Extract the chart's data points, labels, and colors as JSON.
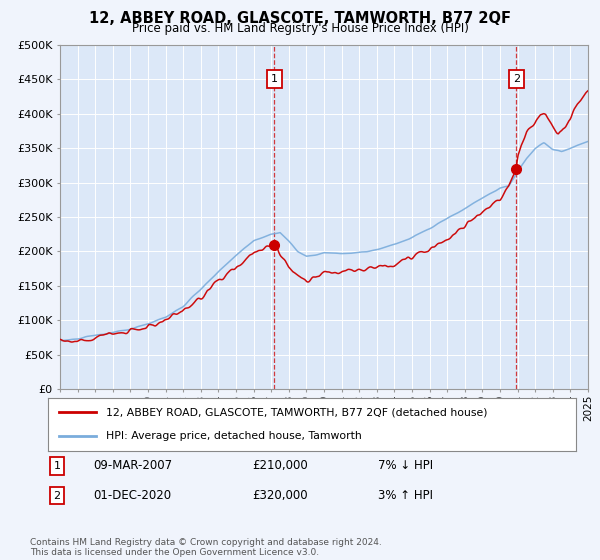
{
  "title": "12, ABBEY ROAD, GLASCOTE, TAMWORTH, B77 2QF",
  "subtitle": "Price paid vs. HM Land Registry's House Price Index (HPI)",
  "bg_color": "#f0f4fc",
  "plot_bg_color": "#dce8f8",
  "legend_label_red": "12, ABBEY ROAD, GLASCOTE, TAMWORTH, B77 2QF (detached house)",
  "legend_label_blue": "HPI: Average price, detached house, Tamworth",
  "annotation1_label": "1",
  "annotation1_date": "09-MAR-2007",
  "annotation1_price": "£210,000",
  "annotation1_hpi": "7% ↓ HPI",
  "annotation2_label": "2",
  "annotation2_date": "01-DEC-2020",
  "annotation2_price": "£320,000",
  "annotation2_hpi": "3% ↑ HPI",
  "footnote": "Contains HM Land Registry data © Crown copyright and database right 2024.\nThis data is licensed under the Open Government Licence v3.0.",
  "xmin": 1995,
  "xmax": 2025,
  "ymin": 0,
  "ymax": 500000,
  "yticks": [
    0,
    50000,
    100000,
    150000,
    200000,
    250000,
    300000,
    350000,
    400000,
    450000,
    500000
  ],
  "ytick_labels": [
    "£0",
    "£50K",
    "£100K",
    "£150K",
    "£200K",
    "£250K",
    "£300K",
    "£350K",
    "£400K",
    "£450K",
    "£500K"
  ],
  "xticks": [
    1995,
    1996,
    1997,
    1998,
    1999,
    2000,
    2001,
    2002,
    2003,
    2004,
    2005,
    2006,
    2007,
    2008,
    2009,
    2010,
    2011,
    2012,
    2013,
    2014,
    2015,
    2016,
    2017,
    2018,
    2019,
    2020,
    2021,
    2022,
    2023,
    2024,
    2025
  ],
  "marker1_x": 2007.18,
  "marker1_y": 210000,
  "marker2_x": 2020.92,
  "marker2_y": 320000,
  "red_color": "#cc0000",
  "blue_color": "#7aacdc",
  "vline_color": "#cc0000",
  "marker_dot_color": "#cc0000",
  "num_box_color": "#cc0000"
}
